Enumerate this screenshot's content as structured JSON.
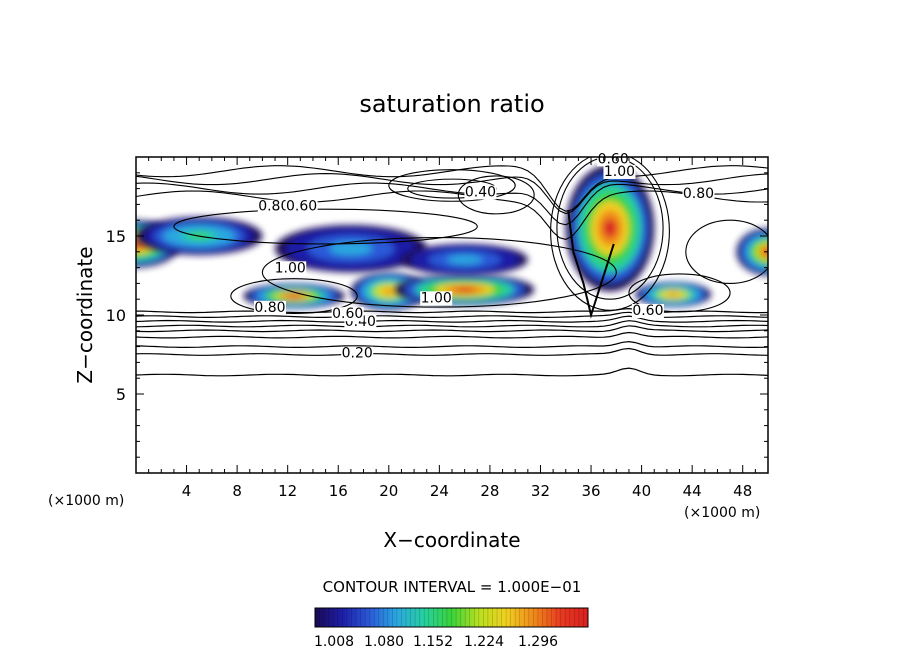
{
  "chart_data": {
    "type": "heatmap",
    "title": "saturation ratio",
    "xlabel": "X−coordinate",
    "ylabel": "Z−coordinate",
    "x_unit_left": "(×1000 m)",
    "x_unit_right": "(×1000 m)",
    "xlim": [
      0,
      50
    ],
    "ylim": [
      0,
      20
    ],
    "x_ticks": [
      4,
      8,
      12,
      16,
      20,
      24,
      28,
      32,
      36,
      40,
      44,
      48
    ],
    "y_ticks": [
      5,
      10,
      15
    ],
    "contour_interval_text": "CONTOUR INTERVAL = 1.000E−01",
    "colorbar": {
      "ticks": [
        "1.008",
        "1.080",
        "1.152",
        "1.224",
        "1.296"
      ],
      "colors": [
        "#1a0a55",
        "#1e1ea8",
        "#2a5ad8",
        "#2aa8e0",
        "#26d0a0",
        "#3ad33a",
        "#b8e020",
        "#f0d020",
        "#f08a1a",
        "#e83a20",
        "#d82020"
      ]
    },
    "contour_labels": [
      {
        "text": "0.20",
        "x": 35,
        "y": 7.3
      },
      {
        "text": "0.40",
        "x": 35.5,
        "y": 9.3
      },
      {
        "text": "0.60",
        "x": 33.5,
        "y": 9.8
      },
      {
        "text": "0.80",
        "x": 21.2,
        "y": 10.2
      },
      {
        "text": "1.00",
        "x": 47.5,
        "y": 10.8
      },
      {
        "text": "0.60",
        "x": 81.0,
        "y": 10.0
      },
      {
        "text": "1.00",
        "x": 24.4,
        "y": 12.7
      },
      {
        "text": "0.80",
        "x": 21.8,
        "y": 16.6
      },
      {
        "text": "0.60",
        "x": 26.2,
        "y": 16.6
      },
      {
        "text": "0.40",
        "x": 54.5,
        "y": 17.5
      },
      {
        "text": "0.60",
        "x": 75.5,
        "y": 19.6
      },
      {
        "text": "1.00",
        "x": 76.5,
        "y": 18.8
      },
      {
        "text": "0.80",
        "x": 89.0,
        "y": 17.4
      }
    ],
    "contour_levels": [
      0.2,
      0.4,
      0.6,
      0.8,
      1.0
    ],
    "supersaturation_regions": [
      {
        "x": 0,
        "y": 14.5,
        "rx": 3.5,
        "ry": 1.5,
        "peak": 1.3
      },
      {
        "x": 5,
        "y": 15,
        "rx": 5,
        "ry": 1.2,
        "peak": 1.15
      },
      {
        "x": 12.5,
        "y": 11.2,
        "rx": 4,
        "ry": 0.8,
        "peak": 1.28
      },
      {
        "x": 17,
        "y": 14.2,
        "rx": 6,
        "ry": 1.5,
        "peak": 1.1
      },
      {
        "x": 20,
        "y": 11.5,
        "rx": 3,
        "ry": 1.2,
        "peak": 1.25
      },
      {
        "x": 26,
        "y": 11.6,
        "rx": 5.5,
        "ry": 1.0,
        "peak": 1.3
      },
      {
        "x": 26,
        "y": 13.5,
        "rx": 5,
        "ry": 1.0,
        "peak": 1.1
      },
      {
        "x": 37.5,
        "y": 15.5,
        "rx": 3.5,
        "ry": 4.0,
        "peak": 1.3
      },
      {
        "x": 42.5,
        "y": 11.3,
        "rx": 3,
        "ry": 0.8,
        "peak": 1.25
      },
      {
        "x": 50,
        "y": 14,
        "rx": 2.5,
        "ry": 1.5,
        "peak": 1.28
      }
    ]
  }
}
